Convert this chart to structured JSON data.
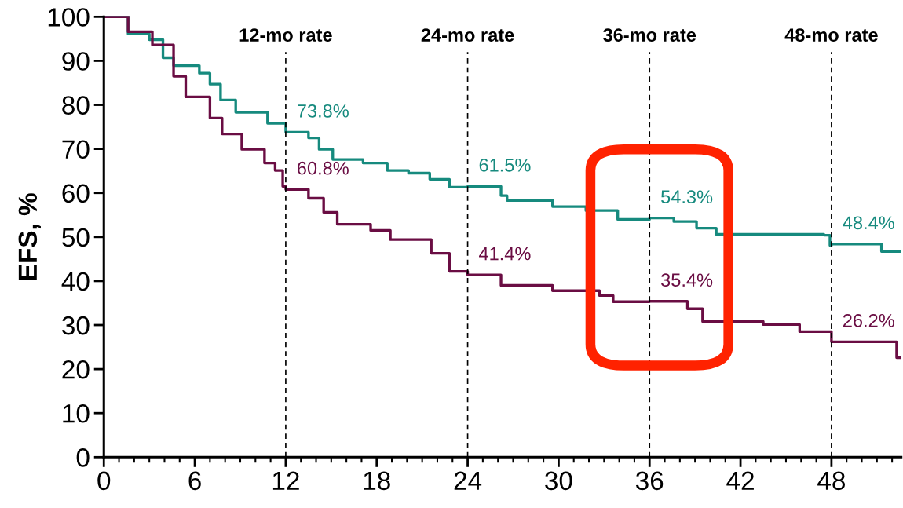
{
  "chart_data": {
    "type": "step",
    "ylabel": "EFS, %",
    "xlim": [
      0,
      52.6
    ],
    "ylim": [
      0,
      100
    ],
    "xticks": [
      0,
      6,
      12,
      18,
      24,
      30,
      36,
      42,
      48
    ],
    "yticks": [
      0,
      10,
      20,
      30,
      40,
      50,
      60,
      70,
      80,
      90,
      100
    ],
    "grid": false,
    "series": [
      {
        "color": "#168a7e",
        "x": [
          0,
          1.6,
          3.0,
          3.9,
          4.6,
          6.3,
          7.0,
          7.7,
          8.7,
          10.8,
          12.0,
          13.5,
          14.2,
          15.1,
          17.1,
          18.7,
          20.1,
          21.5,
          22.8,
          24.0,
          26.2,
          26.6,
          29.6,
          31.8,
          33.9,
          36.0,
          37.6,
          39.1,
          40.4,
          47.5,
          47.9,
          48.0,
          51.3,
          52.6
        ],
        "values": [
          100,
          96.1,
          94.8,
          90.7,
          88.9,
          87.2,
          84.7,
          81.1,
          78.3,
          75.8,
          73.8,
          72.5,
          69.9,
          67.6,
          66.8,
          65.1,
          64.5,
          63.1,
          61.3,
          61.5,
          59.4,
          58.3,
          56.9,
          56.0,
          54.0,
          54.3,
          53.5,
          52.0,
          50.6,
          50.4,
          48.1,
          48.4,
          46.7,
          46.7
        ]
      },
      {
        "color": "#6a0d43",
        "x": [
          0,
          1.6,
          3.2,
          4.6,
          5.4,
          7.0,
          7.8,
          9.1,
          10.6,
          11.3,
          11.8,
          12.0,
          13.5,
          14.5,
          15.4,
          17.6,
          18.9,
          21.6,
          22.8,
          24.0,
          26.2,
          29.6,
          32.7,
          33.6,
          36.0,
          38.5,
          39.5,
          43.5,
          45.9,
          48.0,
          52.3,
          52.6
        ],
        "values": [
          100,
          96.6,
          93.6,
          86.5,
          81.8,
          77.0,
          73.4,
          69.9,
          66.8,
          65.1,
          61.5,
          60.8,
          58.8,
          55.6,
          52.9,
          51.5,
          49.4,
          46.3,
          42.2,
          41.4,
          39.0,
          37.8,
          36.7,
          35.3,
          35.4,
          33.7,
          30.8,
          30.1,
          28.5,
          26.2,
          22.6,
          22.6
        ]
      }
    ],
    "ref_lines": [
      {
        "axis": "x",
        "value": 12,
        "label": "12-mo rate",
        "color": "#000000",
        "line_style": "dashed"
      },
      {
        "axis": "x",
        "value": 24,
        "label": "24-mo rate",
        "color": "#000000",
        "line_style": "dashed"
      },
      {
        "axis": "x",
        "value": 36,
        "label": "36-mo rate",
        "color": "#000000",
        "line_style": "dashed"
      },
      {
        "axis": "x",
        "value": 48,
        "label": "48-mo rate",
        "color": "#000000",
        "line_style": "dashed"
      }
    ],
    "annotations": [
      {
        "text": "73.8%",
        "x": 12,
        "y": 73.8
      },
      {
        "text": "60.8%",
        "x": 12,
        "y": 60.8
      },
      {
        "text": "61.5%",
        "x": 24,
        "y": 61.5
      },
      {
        "text": "41.4%",
        "x": 24,
        "y": 41.4
      },
      {
        "text": "54.3%",
        "x": 36,
        "y": 54.3
      },
      {
        "text": "35.4%",
        "x": 36,
        "y": 35.4
      },
      {
        "text": "48.4%",
        "x": 48,
        "y": 48.4
      },
      {
        "text": "26.2%",
        "x": 48,
        "y": 26.2
      }
    ]
  }
}
